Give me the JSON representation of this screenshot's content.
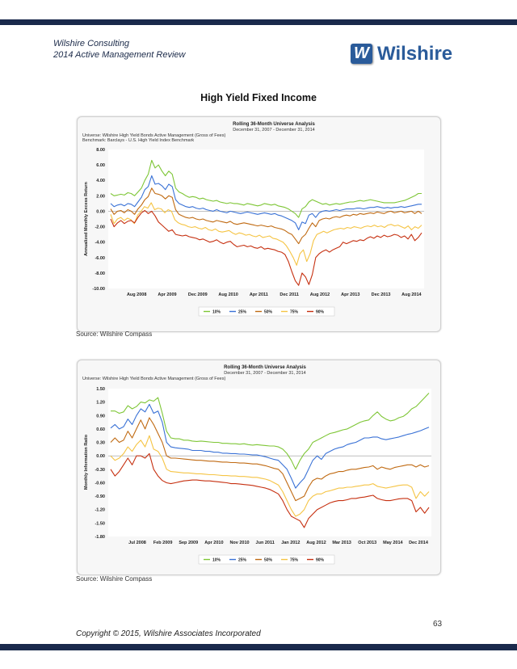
{
  "header": {
    "company": "Wilshire Consulting",
    "report": "2014 Active Management Review",
    "logo_text": "Wilshire",
    "logo_letter": "W"
  },
  "section_title": "High Yield Fixed Income",
  "footer": {
    "page_number": "63",
    "copyright": "Copyright © 2015, Wilshire Associates Incorporated"
  },
  "colors": {
    "navy": "#1a2a4c",
    "logo_blue": "#2a5b9a",
    "plot_bg": "#ffffff",
    "series": [
      "#7ec636",
      "#3a72d6",
      "#c06a12",
      "#f5c444",
      "#c63010"
    ]
  },
  "chart_data": [
    {
      "type": "line",
      "title": "Rolling 36-Month Universe Analysis",
      "subtitle": "December 31, 2007 - December 31, 2014",
      "universe": "Universe: Wilshire High Yield Bonds Active Management (Gross of Fees)",
      "benchmark": "Benchmark: Barclays - U.S. High Yield Index Benchmark",
      "ylabel": "Annualized Monthly Excess Return",
      "xlabel": "",
      "ylim": [
        -10,
        8
      ],
      "yticks": [
        "8.00",
        "6.00",
        "4.00",
        "2.00",
        "0.00",
        "-2.00",
        "-4.00",
        "-6.00",
        "-8.00",
        "-10.00"
      ],
      "xticks": [
        "Aug 2008",
        "Apr 2009",
        "Dec 2009",
        "Aug 2010",
        "Apr 2011",
        "Dec 2011",
        "Aug 2012",
        "Apr 2013",
        "Dec 2013",
        "Aug 2014"
      ],
      "grid": false,
      "legend": "bottom",
      "series": [
        {
          "name": "10%",
          "values": [
            2.3,
            2.0,
            2.1,
            2.2,
            2.1,
            2.4,
            2.3,
            2.0,
            2.5,
            3.0,
            4.0,
            4.8,
            6.6,
            5.6,
            6.0,
            5.2,
            4.6,
            5.2,
            4.8,
            3.0,
            2.5,
            2.3,
            2.0,
            1.8,
            1.9,
            1.8,
            1.6,
            1.7,
            1.5,
            1.4,
            1.3,
            1.4,
            1.2,
            1.1,
            1.0,
            1.1,
            1.0,
            1.0,
            0.9,
            0.8,
            1.0,
            0.9,
            0.8,
            0.7,
            0.8,
            1.0,
            0.9,
            0.8,
            0.9,
            0.7,
            0.6,
            0.5,
            0.3,
            0.0,
            -0.3,
            -0.8,
            0.3,
            0.6,
            1.2,
            1.5,
            1.3,
            1.1,
            0.9,
            1.0,
            0.8,
            0.9,
            1.0,
            0.9,
            1.0,
            1.1,
            1.2,
            1.2,
            1.3,
            1.4,
            1.3,
            1.4,
            1.5,
            1.4,
            1.3,
            1.2,
            1.1,
            1.1,
            1.1,
            1.1,
            1.2,
            1.3,
            1.4,
            1.6,
            1.8,
            2.0,
            2.3,
            2.3
          ]
        },
        {
          "name": "25%",
          "values": [
            1.0,
            0.6,
            0.8,
            0.9,
            0.7,
            1.0,
            0.9,
            0.6,
            1.2,
            1.8,
            2.8,
            3.2,
            4.6,
            3.5,
            3.6,
            3.3,
            2.8,
            3.5,
            3.2,
            1.5,
            1.0,
            0.8,
            0.6,
            0.5,
            0.6,
            0.4,
            0.3,
            0.4,
            0.2,
            0.1,
            0.0,
            0.2,
            0.0,
            -0.1,
            -0.2,
            0.0,
            -0.1,
            -0.2,
            -0.3,
            -0.2,
            -0.1,
            -0.2,
            -0.3,
            -0.4,
            -0.3,
            -0.2,
            -0.3,
            -0.4,
            -0.3,
            -0.5,
            -0.6,
            -0.8,
            -1.0,
            -1.2,
            -1.5,
            -2.4,
            -1.4,
            -1.6,
            -0.5,
            -0.3,
            -0.8,
            -0.2,
            0.0,
            0.1,
            0.0,
            0.1,
            0.2,
            0.1,
            0.2,
            0.3,
            0.3,
            0.3,
            0.4,
            0.4,
            0.3,
            0.4,
            0.5,
            0.5,
            0.6,
            0.5,
            0.4,
            0.5,
            0.4,
            0.5,
            0.5,
            0.6,
            0.5,
            0.6,
            0.7,
            0.8,
            0.9,
            0.9
          ]
        },
        {
          "name": "50%",
          "values": [
            0.3,
            -0.4,
            0.0,
            0.1,
            -0.2,
            0.2,
            0.0,
            -0.4,
            0.3,
            0.8,
            1.5,
            1.9,
            3.0,
            2.3,
            2.2,
            2.0,
            1.6,
            2.0,
            1.8,
            0.2,
            -0.4,
            -0.6,
            -0.8,
            -0.9,
            -0.8,
            -1.0,
            -1.1,
            -1.0,
            -1.2,
            -1.3,
            -1.4,
            -1.2,
            -1.3,
            -1.4,
            -1.5,
            -1.3,
            -1.6,
            -1.7,
            -1.6,
            -1.5,
            -1.6,
            -1.7,
            -1.8,
            -1.9,
            -1.8,
            -1.9,
            -2.0,
            -1.9,
            -2.1,
            -2.2,
            -2.3,
            -2.5,
            -2.8,
            -3.0,
            -3.6,
            -4.2,
            -3.4,
            -3.0,
            -2.2,
            -1.5,
            -2.0,
            -1.2,
            -1.0,
            -0.9,
            -1.0,
            -0.8,
            -0.7,
            -0.8,
            -0.6,
            -0.5,
            -0.6,
            -0.4,
            -0.5,
            -0.3,
            -0.4,
            -0.3,
            -0.2,
            -0.3,
            -0.1,
            -0.2,
            -0.3,
            -0.1,
            0.0,
            -0.2,
            -0.1,
            0.0,
            -0.2,
            -0.1,
            0.0,
            -0.3,
            0.0,
            -0.3
          ]
        },
        {
          "name": "75%",
          "values": [
            -0.4,
            -1.6,
            -1.0,
            -0.8,
            -1.2,
            -0.9,
            -1.1,
            -1.6,
            -0.5,
            0.0,
            0.6,
            0.4,
            1.1,
            0.2,
            0.4,
            0.3,
            -0.2,
            0.2,
            0.0,
            -1.1,
            -1.5,
            -1.7,
            -1.8,
            -2.0,
            -2.1,
            -2.0,
            -2.2,
            -2.3,
            -2.1,
            -2.4,
            -2.5,
            -2.3,
            -2.6,
            -2.7,
            -2.6,
            -2.5,
            -2.8,
            -3.0,
            -2.8,
            -2.9,
            -3.1,
            -3.0,
            -3.2,
            -3.3,
            -3.1,
            -3.4,
            -3.3,
            -3.2,
            -3.5,
            -3.6,
            -3.8,
            -4.0,
            -4.5,
            -5.2,
            -6.0,
            -7.0,
            -5.5,
            -5.0,
            -6.5,
            -5.5,
            -3.8,
            -3.0,
            -2.8,
            -2.6,
            -2.8,
            -2.6,
            -2.4,
            -2.3,
            -2.2,
            -2.3,
            -2.1,
            -2.2,
            -2.0,
            -2.1,
            -2.2,
            -2.0,
            -1.9,
            -2.0,
            -1.8,
            -2.0,
            -1.9,
            -2.1,
            -1.8,
            -1.7,
            -1.9,
            -1.8,
            -2.0,
            -2.2,
            -1.9,
            -2.4,
            -2.0,
            -2.2,
            -1.8
          ]
        },
        {
          "name": "90%",
          "values": [
            -1.0,
            -2.0,
            -1.5,
            -1.2,
            -1.6,
            -1.3,
            -1.2,
            -1.5,
            -0.8,
            -0.2,
            0.1,
            -0.3,
            0.0,
            -0.6,
            -1.4,
            -1.8,
            -2.2,
            -2.6,
            -2.4,
            -3.0,
            -3.1,
            -3.2,
            -3.1,
            -3.3,
            -3.4,
            -3.5,
            -3.7,
            -3.6,
            -3.8,
            -4.0,
            -3.9,
            -3.7,
            -4.0,
            -4.2,
            -4.0,
            -3.9,
            -4.3,
            -4.6,
            -4.5,
            -4.4,
            -4.6,
            -4.5,
            -4.7,
            -4.8,
            -4.6,
            -4.9,
            -4.8,
            -4.9,
            -5.0,
            -5.2,
            -5.3,
            -5.6,
            -6.5,
            -7.8,
            -9.0,
            -9.6,
            -8.0,
            -8.5,
            -9.5,
            -8.2,
            -6.0,
            -5.5,
            -5.2,
            -5.0,
            -5.3,
            -5.0,
            -4.8,
            -4.6,
            -4.0,
            -4.2,
            -4.0,
            -3.8,
            -3.9,
            -3.7,
            -3.8,
            -3.5,
            -3.3,
            -3.5,
            -3.2,
            -3.4,
            -3.1,
            -3.3,
            -3.2,
            -3.0,
            -3.1,
            -3.4,
            -3.2,
            -3.6,
            -3.0,
            -3.8,
            -3.4,
            -2.8
          ]
        }
      ]
    },
    {
      "type": "line",
      "title": "Rolling 36-Month Universe Analysis",
      "subtitle": "December 31, 2007 - December 31, 2014",
      "universe": "Universe: Wilshire High Yield Bonds Active Management (Gross of Fees)",
      "ylabel": "Monthly Information Ratio",
      "xlabel": "",
      "ylim": [
        -1.8,
        1.5
      ],
      "yticks": [
        "1.50",
        "1.20",
        "0.90",
        "0.60",
        "0.30",
        "0.00",
        "-0.30",
        "-0.60",
        "-0.90",
        "-1.20",
        "-1.50",
        "-1.80"
      ],
      "xticks": [
        "Jul 2008",
        "Feb 2009",
        "Sep 2009",
        "Apr 2010",
        "Nov 2010",
        "Jun 2011",
        "Jan 2012",
        "Aug 2012",
        "Mar 2013",
        "Oct 2013",
        "May 2014",
        "Dec 2014"
      ],
      "grid": false,
      "legend": "bottom",
      "series": [
        {
          "name": "10%",
          "values": [
            1.0,
            1.0,
            0.95,
            0.98,
            1.12,
            1.05,
            1.1,
            1.2,
            1.18,
            1.25,
            1.22,
            1.3,
            0.95,
            0.55,
            0.4,
            0.38,
            0.38,
            0.35,
            0.35,
            0.33,
            0.32,
            0.33,
            0.32,
            0.31,
            0.3,
            0.3,
            0.28,
            0.28,
            0.27,
            0.27,
            0.26,
            0.27,
            0.25,
            0.24,
            0.25,
            0.24,
            0.23,
            0.22,
            0.22,
            0.2,
            0.15,
            0.05,
            -0.1,
            -0.3,
            -0.1,
            0.05,
            0.15,
            0.3,
            0.35,
            0.4,
            0.45,
            0.5,
            0.52,
            0.55,
            0.58,
            0.6,
            0.65,
            0.7,
            0.75,
            0.78,
            0.8,
            0.9,
            0.98,
            0.88,
            0.82,
            0.78,
            0.8,
            0.85,
            0.88,
            0.95,
            1.05,
            1.1,
            1.2,
            1.3,
            1.4
          ]
        },
        {
          "name": "25%",
          "values": [
            0.62,
            0.7,
            0.6,
            0.65,
            0.82,
            0.7,
            0.9,
            1.05,
            0.98,
            1.15,
            0.95,
            1.0,
            0.75,
            0.3,
            0.2,
            0.18,
            0.17,
            0.16,
            0.15,
            0.12,
            0.12,
            0.12,
            0.1,
            0.1,
            0.08,
            0.08,
            0.06,
            0.06,
            0.05,
            0.05,
            0.04,
            0.04,
            0.03,
            0.02,
            0.02,
            0.0,
            -0.02,
            -0.05,
            -0.08,
            -0.1,
            -0.2,
            -0.3,
            -0.5,
            -0.72,
            -0.6,
            -0.5,
            -0.3,
            -0.1,
            0.0,
            -0.08,
            0.05,
            0.1,
            0.15,
            0.18,
            0.2,
            0.25,
            0.28,
            0.3,
            0.35,
            0.4,
            0.4,
            0.42,
            0.42,
            0.38,
            0.36,
            0.38,
            0.4,
            0.42,
            0.45,
            0.48,
            0.5,
            0.53,
            0.56,
            0.6,
            0.64
          ]
        },
        {
          "name": "50%",
          "values": [
            0.3,
            0.4,
            0.3,
            0.35,
            0.55,
            0.4,
            0.6,
            0.8,
            0.6,
            0.85,
            0.7,
            0.5,
            0.3,
            0.0,
            -0.05,
            -0.05,
            -0.06,
            -0.07,
            -0.08,
            -0.09,
            -0.1,
            -0.1,
            -0.11,
            -0.12,
            -0.12,
            -0.13,
            -0.14,
            -0.14,
            -0.15,
            -0.15,
            -0.16,
            -0.16,
            -0.17,
            -0.18,
            -0.18,
            -0.2,
            -0.22,
            -0.25,
            -0.28,
            -0.3,
            -0.4,
            -0.6,
            -0.8,
            -1.0,
            -0.95,
            -0.9,
            -0.7,
            -0.55,
            -0.5,
            -0.52,
            -0.45,
            -0.4,
            -0.38,
            -0.35,
            -0.35,
            -0.32,
            -0.3,
            -0.3,
            -0.28,
            -0.26,
            -0.25,
            -0.22,
            -0.3,
            -0.25,
            -0.28,
            -0.3,
            -0.26,
            -0.24,
            -0.22,
            -0.2,
            -0.2,
            -0.25,
            -0.2,
            -0.25,
            -0.22
          ]
        },
        {
          "name": "75%",
          "values": [
            0.0,
            -0.1,
            -0.05,
            0.05,
            0.2,
            0.1,
            0.25,
            0.35,
            0.2,
            0.45,
            0.15,
            0.1,
            -0.05,
            -0.3,
            -0.35,
            -0.36,
            -0.37,
            -0.38,
            -0.38,
            -0.39,
            -0.4,
            -0.4,
            -0.41,
            -0.42,
            -0.42,
            -0.43,
            -0.44,
            -0.44,
            -0.45,
            -0.45,
            -0.46,
            -0.46,
            -0.47,
            -0.48,
            -0.48,
            -0.5,
            -0.52,
            -0.55,
            -0.6,
            -0.65,
            -0.8,
            -1.0,
            -1.2,
            -1.35,
            -1.3,
            -1.2,
            -1.0,
            -0.9,
            -0.85,
            -0.85,
            -0.8,
            -0.78,
            -0.75,
            -0.72,
            -0.72,
            -0.7,
            -0.7,
            -0.68,
            -0.67,
            -0.65,
            -0.65,
            -0.62,
            -0.68,
            -0.7,
            -0.72,
            -0.7,
            -0.68,
            -0.66,
            -0.65,
            -0.65,
            -0.7,
            -0.95,
            -0.8,
            -0.9,
            -0.8
          ]
        },
        {
          "name": "90%",
          "values": [
            -0.3,
            -0.45,
            -0.35,
            -0.2,
            -0.05,
            -0.2,
            0.0,
            0.0,
            -0.05,
            0.05,
            -0.3,
            -0.45,
            -0.55,
            -0.6,
            -0.62,
            -0.6,
            -0.58,
            -0.56,
            -0.55,
            -0.54,
            -0.54,
            -0.55,
            -0.56,
            -0.56,
            -0.57,
            -0.58,
            -0.59,
            -0.6,
            -0.62,
            -0.62,
            -0.63,
            -0.64,
            -0.65,
            -0.66,
            -0.68,
            -0.7,
            -0.72,
            -0.75,
            -0.8,
            -0.85,
            -1.0,
            -1.2,
            -1.35,
            -1.4,
            -1.45,
            -1.6,
            -1.4,
            -1.3,
            -1.2,
            -1.15,
            -1.1,
            -1.05,
            -1.02,
            -1.0,
            -1.0,
            -0.98,
            -0.95,
            -0.95,
            -0.93,
            -0.92,
            -0.9,
            -0.88,
            -0.95,
            -0.98,
            -1.0,
            -1.0,
            -0.98,
            -0.96,
            -0.95,
            -0.95,
            -1.0,
            -1.25,
            -1.15,
            -1.28,
            -1.15
          ]
        }
      ]
    }
  ],
  "sources": [
    "Source: Wilshire Compass",
    "Source: Wilshire Compass"
  ]
}
